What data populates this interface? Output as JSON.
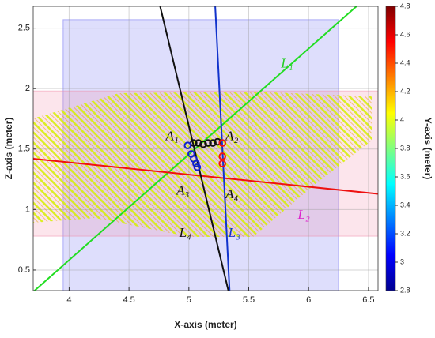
{
  "chart_data": {
    "type": "scatter",
    "x_label": "X-axis (meter)",
    "y_label": "Z-axis (meter)",
    "xlim": [
      3.7,
      6.58
    ],
    "ylim": [
      0.33,
      2.68
    ],
    "xticks": [
      4,
      4.5,
      5,
      5.5,
      6,
      6.5
    ],
    "yticks": [
      0.5,
      1,
      1.5,
      2,
      2.5
    ],
    "grid": true,
    "regions": [
      {
        "color": "#6a6af0",
        "x": [
          3.95,
          6.25
        ],
        "values": [
          0.27,
          2.57
        ]
      },
      {
        "color": "#f08aa8",
        "x": [
          3.7,
          6.58
        ],
        "values": [
          0.78,
          1.98
        ]
      }
    ],
    "lines": [
      {
        "color": "#22dd22",
        "x": [
          3.7,
          6.4
        ],
        "values": [
          0.32,
          2.68
        ]
      },
      {
        "color": "#ee1111",
        "x": [
          3.7,
          6.58
        ],
        "values": [
          1.42,
          1.13
        ]
      },
      {
        "color": "#111111",
        "x": [
          4.76,
          5.33
        ],
        "values": [
          2.68,
          0.33
        ]
      },
      {
        "color": "#1133cc",
        "x": [
          5.22,
          5.34
        ],
        "values": [
          2.68,
          0.33
        ]
      }
    ],
    "series": [
      {
        "color": "#111111",
        "x": [
          5.04,
          5.08,
          5.12,
          5.16,
          5.2,
          5.24
        ],
        "values": [
          1.55,
          1.55,
          1.54,
          1.55,
          1.55,
          1.56
        ]
      },
      {
        "color": "#1122cc",
        "x": [
          4.99,
          5.02,
          5.04,
          5.06,
          5.07
        ],
        "values": [
          1.53,
          1.46,
          1.42,
          1.38,
          1.35
        ]
      },
      {
        "color": "#ee1111",
        "x": [
          5.28,
          5.28,
          5.28
        ],
        "values": [
          1.55,
          1.44,
          1.38
        ]
      }
    ],
    "annotations": [
      {
        "text": "A₁",
        "x": 4.86,
        "y": 1.6,
        "color": "#111111"
      },
      {
        "text": "A₂",
        "x": 5.36,
        "y": 1.6,
        "color": "#111111"
      },
      {
        "text": "A₃",
        "x": 4.95,
        "y": 1.15,
        "color": "#111111"
      },
      {
        "text": "A₄",
        "x": 5.36,
        "y": 1.12,
        "color": "#111111"
      },
      {
        "text": "L₁",
        "x": 5.82,
        "y": 2.2,
        "color": "#22cc22"
      },
      {
        "text": "L₂",
        "x": 5.96,
        "y": 0.95,
        "color": "#dd22cc"
      },
      {
        "text": "L₃",
        "x": 5.38,
        "y": 0.8,
        "color": "#1133cc"
      },
      {
        "text": "L₄",
        "x": 4.97,
        "y": 0.8,
        "color": "#111111"
      }
    ],
    "colorbar": {
      "label": "Y-axis (meter)",
      "lim": [
        2.8,
        4.8
      ],
      "ticks": [
        2.8,
        3,
        3.2,
        3.4,
        3.6,
        3.8,
        4,
        4.2,
        4.4,
        4.6,
        4.8
      ]
    }
  }
}
